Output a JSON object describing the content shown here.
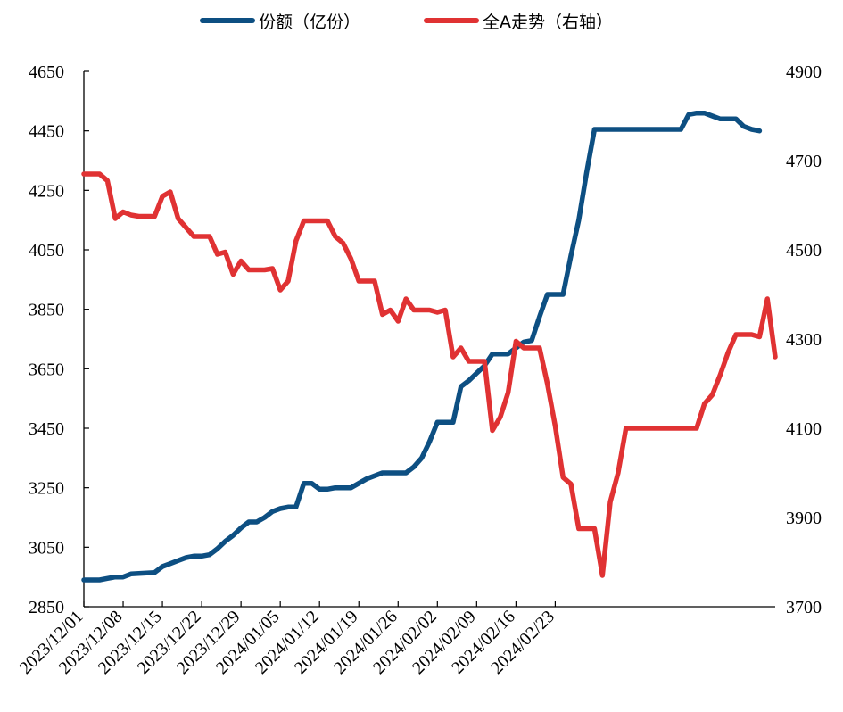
{
  "chart_data": {
    "type": "line",
    "x_labels": [
      "2023/12/01",
      "2023/12/08",
      "2023/12/15",
      "2023/12/22",
      "2023/12/29",
      "2024/01/05",
      "2024/01/12",
      "2024/01/19",
      "2024/01/26",
      "2024/02/02",
      "2024/02/09",
      "2024/02/16",
      "2024/02/23"
    ],
    "y_left": {
      "ticks": [
        2850,
        3050,
        3250,
        3450,
        3650,
        3850,
        4050,
        4250,
        4450,
        4650
      ],
      "lim": [
        2850,
        4650
      ]
    },
    "y_right": {
      "ticks": [
        3700,
        3900,
        4100,
        4300,
        4500,
        4700,
        4900
      ],
      "lim": [
        3700,
        4900
      ]
    },
    "grid": false,
    "legend_position": "top",
    "series": [
      {
        "name": "份额（亿份）",
        "axis": "left",
        "color": "#0d4f82",
        "values": [
          [
            0,
            2940
          ],
          [
            2,
            2940
          ],
          [
            3,
            2945
          ],
          [
            4,
            2950
          ],
          [
            5,
            2950
          ],
          [
            6,
            2960
          ],
          [
            7,
            2962
          ],
          [
            9,
            2965
          ],
          [
            10,
            2985
          ],
          [
            11,
            2995
          ],
          [
            12,
            3005
          ],
          [
            13,
            3015
          ],
          [
            14,
            3020
          ],
          [
            15,
            3020
          ],
          [
            16,
            3025
          ],
          [
            17,
            3045
          ],
          [
            18,
            3070
          ],
          [
            19,
            3090
          ],
          [
            20,
            3115
          ],
          [
            21,
            3135
          ],
          [
            22,
            3135
          ],
          [
            23,
            3150
          ],
          [
            24,
            3170
          ],
          [
            25,
            3180
          ],
          [
            26,
            3185
          ],
          [
            27,
            3185
          ],
          [
            28,
            3265
          ],
          [
            29,
            3265
          ],
          [
            30,
            3245
          ],
          [
            31,
            3245
          ],
          [
            32,
            3250
          ],
          [
            33,
            3250
          ],
          [
            34,
            3250
          ],
          [
            35,
            3265
          ],
          [
            36,
            3280
          ],
          [
            37,
            3290
          ],
          [
            38,
            3300
          ],
          [
            39,
            3300
          ],
          [
            40,
            3300
          ],
          [
            41,
            3300
          ],
          [
            42,
            3320
          ],
          [
            43,
            3350
          ],
          [
            44,
            3405
          ],
          [
            45,
            3470
          ],
          [
            46,
            3470
          ],
          [
            47,
            3470
          ],
          [
            48,
            3590
          ],
          [
            49,
            3610
          ],
          [
            50,
            3635
          ],
          [
            51,
            3660
          ],
          [
            52,
            3700
          ],
          [
            53,
            3700
          ],
          [
            54,
            3700
          ],
          [
            55,
            3720
          ],
          [
            56,
            3740
          ],
          [
            57,
            3745
          ],
          [
            58,
            3825
          ],
          [
            59,
            3900
          ],
          [
            60,
            3900
          ],
          [
            61,
            3900
          ],
          [
            62,
            4030
          ],
          [
            63,
            4150
          ],
          [
            64,
            4310
          ],
          [
            65,
            4455
          ],
          [
            67,
            4455
          ],
          [
            69,
            4455
          ],
          [
            72,
            4455
          ],
          [
            75,
            4455
          ],
          [
            76,
            4455
          ],
          [
            77,
            4505
          ],
          [
            78,
            4510
          ],
          [
            79,
            4510
          ],
          [
            80,
            4500
          ],
          [
            81,
            4490
          ],
          [
            82,
            4490
          ],
          [
            83,
            4490
          ],
          [
            84,
            4465
          ],
          [
            85,
            4455
          ],
          [
            86,
            4450
          ]
        ]
      },
      {
        "name": "全A走势（右轴）",
        "axis": "right",
        "color": "#e03233",
        "values": [
          [
            0,
            4670
          ],
          [
            2,
            4670
          ],
          [
            3,
            4655
          ],
          [
            4,
            4570
          ],
          [
            5,
            4585
          ],
          [
            6,
            4578
          ],
          [
            7,
            4575
          ],
          [
            9,
            4575
          ],
          [
            10,
            4620
          ],
          [
            11,
            4630
          ],
          [
            12,
            4570
          ],
          [
            13,
            4550
          ],
          [
            14,
            4530
          ],
          [
            15,
            4530
          ],
          [
            16,
            4530
          ],
          [
            17,
            4490
          ],
          [
            18,
            4495
          ],
          [
            19,
            4445
          ],
          [
            20,
            4475
          ],
          [
            21,
            4455
          ],
          [
            22,
            4455
          ],
          [
            23,
            4455
          ],
          [
            24,
            4458
          ],
          [
            25,
            4410
          ],
          [
            26,
            4430
          ],
          [
            27,
            4520
          ],
          [
            28,
            4565
          ],
          [
            29,
            4565
          ],
          [
            30,
            4565
          ],
          [
            31,
            4565
          ],
          [
            32,
            4530
          ],
          [
            33,
            4515
          ],
          [
            34,
            4480
          ],
          [
            35,
            4430
          ],
          [
            36,
            4430
          ],
          [
            37,
            4430
          ],
          [
            38,
            4355
          ],
          [
            39,
            4365
          ],
          [
            40,
            4340
          ],
          [
            41,
            4390
          ],
          [
            42,
            4365
          ],
          [
            43,
            4365
          ],
          [
            44,
            4365
          ],
          [
            45,
            4360
          ],
          [
            46,
            4365
          ],
          [
            47,
            4260
          ],
          [
            48,
            4280
          ],
          [
            49,
            4250
          ],
          [
            50,
            4250
          ],
          [
            51,
            4250
          ],
          [
            52,
            4095
          ],
          [
            53,
            4125
          ],
          [
            54,
            4180
          ],
          [
            55,
            4295
          ],
          [
            56,
            4280
          ],
          [
            57,
            4280
          ],
          [
            58,
            4280
          ],
          [
            59,
            4200
          ],
          [
            60,
            4105
          ],
          [
            61,
            3990
          ],
          [
            62,
            3975
          ],
          [
            63,
            3875
          ],
          [
            64,
            3875
          ],
          [
            65,
            3875
          ],
          [
            66,
            3770
          ],
          [
            67,
            3935
          ],
          [
            68,
            4000
          ],
          [
            69,
            4100
          ],
          [
            70,
            4100
          ],
          [
            72,
            4100
          ],
          [
            75,
            4100
          ],
          [
            76,
            4100
          ],
          [
            77,
            4100
          ],
          [
            78,
            4100
          ],
          [
            79,
            4155
          ],
          [
            80,
            4175
          ],
          [
            81,
            4220
          ],
          [
            82,
            4270
          ],
          [
            83,
            4310
          ],
          [
            84,
            4310
          ],
          [
            85,
            4310
          ],
          [
            86,
            4305
          ],
          [
            87,
            4390
          ],
          [
            88,
            4260
          ]
        ]
      }
    ]
  }
}
